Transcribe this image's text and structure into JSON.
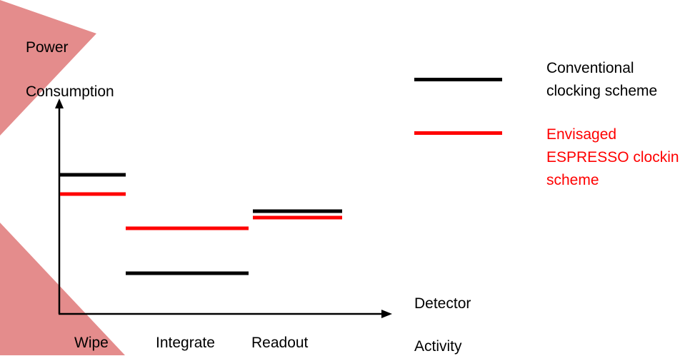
{
  "chart_data": {
    "type": "bar",
    "ylabel": [
      "Power",
      "Consumption"
    ],
    "xlabel": [
      "Detector",
      "Activity"
    ],
    "categories": [
      "Wipe",
      "Integrate",
      "Readout"
    ],
    "ylim": [
      0,
      100
    ],
    "series": [
      {
        "name": [
          "Conventional",
          "clocking scheme"
        ],
        "color": "#000000",
        "values": [
          65,
          19,
          48
        ]
      },
      {
        "name": [
          "Envisaged",
          "ESPRESSO clockin",
          "scheme"
        ],
        "color": "#ff0000",
        "values": [
          56,
          40,
          45
        ]
      }
    ],
    "grid": false,
    "legend_position": "right"
  },
  "decoration": {
    "accent_color": "#e48c8c"
  }
}
